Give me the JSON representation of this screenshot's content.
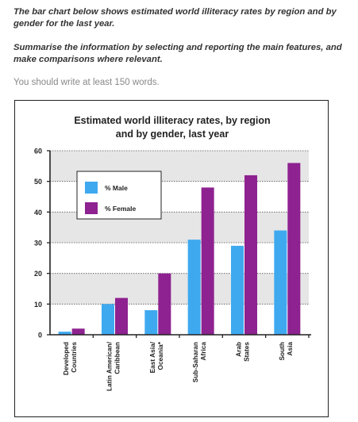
{
  "task": {
    "line1": "The bar chart below shows estimated world illiteracy rates by region and by gender for the last year.",
    "line2": "Summarise the information by selecting and reporting the main features, and make comparisons where relevant."
  },
  "instruction": "You should write at least 150 words.",
  "colors": {
    "male": "#3fa9f0",
    "female": "#8e2290",
    "band": "#e6e6e6",
    "frame": "#222222"
  },
  "chart_data": {
    "type": "bar",
    "title_line1": "Estimated world illiteracy rates, by region",
    "title_line2": "and by gender, last year",
    "categories": [
      [
        "Developed",
        "Countries"
      ],
      [
        "Latin American/",
        "Caribbean"
      ],
      [
        "East Asia/",
        "Oceania*"
      ],
      [
        "Sub-Saharan",
        "Africa"
      ],
      [
        "Arab",
        "States"
      ],
      [
        "South",
        "Asia"
      ]
    ],
    "series": [
      {
        "name": "% Male",
        "values": [
          1,
          10,
          8,
          31,
          29,
          34
        ]
      },
      {
        "name": "% Female",
        "values": [
          2,
          12,
          20,
          48,
          52,
          56
        ]
      }
    ],
    "ylim": [
      0,
      60
    ],
    "yticks": [
      0,
      10,
      20,
      30,
      40,
      50,
      60
    ],
    "grid": "dotted",
    "legend": "top-left"
  }
}
